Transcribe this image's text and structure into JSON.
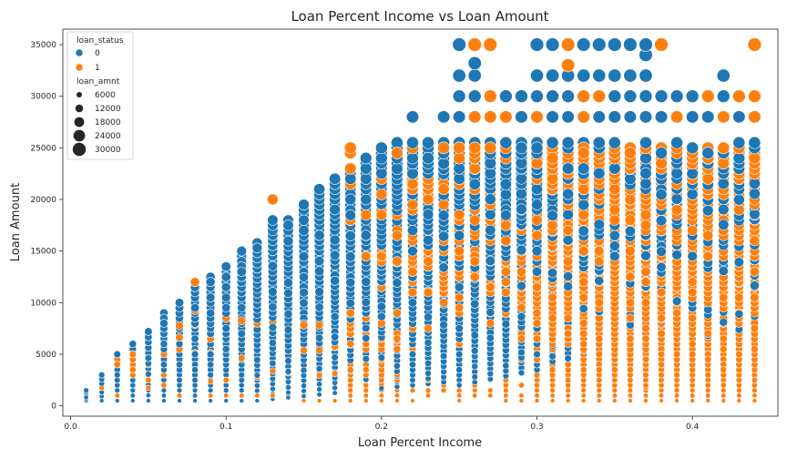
{
  "chart_data": {
    "type": "scatter",
    "title": "Loan Percent Income vs Loan Amount",
    "xlabel": "Loan Percent Income",
    "ylabel": "Loan Amount",
    "xlim": [
      -0.005,
      0.455
    ],
    "ylim": [
      -1000,
      36500
    ],
    "x_ticks": [
      0.0,
      0.1,
      0.2,
      0.3,
      0.4
    ],
    "x_tick_labels": [
      "0.0",
      "0.1",
      "0.2",
      "0.3",
      "0.4"
    ],
    "y_ticks": [
      0,
      5000,
      10000,
      15000,
      20000,
      25000,
      30000,
      35000
    ],
    "y_tick_labels": [
      "0",
      "5000",
      "10000",
      "15000",
      "20000",
      "25000",
      "30000",
      "35000"
    ],
    "grid": false,
    "legend_placement": "top-left",
    "legend": {
      "hue_title": "loan_status",
      "hue_entries": [
        {
          "label": "0",
          "color": "#1f77b4"
        },
        {
          "label": "1",
          "color": "#ff7f0e"
        }
      ],
      "size_title": "loan_amnt",
      "size_entries": [
        "6000",
        "12000",
        "18000",
        "24000",
        "30000"
      ]
    },
    "series": [
      {
        "name": "0",
        "color": "#1f77b4",
        "x_values": [
          0.01,
          0.02,
          0.03,
          0.04,
          0.05,
          0.06,
          0.07,
          0.08,
          0.09,
          0.1,
          0.11,
          0.12,
          0.13,
          0.14,
          0.15,
          0.16,
          0.17,
          0.18,
          0.19,
          0.2,
          0.21,
          0.22,
          0.23,
          0.24,
          0.25,
          0.26,
          0.27,
          0.28,
          0.29,
          0.3,
          0.31,
          0.32,
          0.33,
          0.34,
          0.35,
          0.36,
          0.37,
          0.38,
          0.39,
          0.4,
          0.41,
          0.42,
          0.43,
          0.44
        ],
        "y_max": [
          1500,
          3000,
          5000,
          6000,
          7200,
          9000,
          10000,
          11500,
          12500,
          13500,
          15000,
          15800,
          18000,
          18000,
          19500,
          21000,
          22000,
          22500,
          24000,
          25000,
          26000,
          28000,
          28000,
          28000,
          35000,
          33000,
          32000,
          30000,
          31000,
          35000,
          35000,
          35000,
          35000,
          35000,
          35000,
          35000,
          35000,
          30000,
          30000,
          30000,
          30000,
          32000,
          30000,
          30000
        ]
      },
      {
        "name": "1",
        "color": "#ff7f0e",
        "x_min": 0.02,
        "x_values": [
          0.02,
          0.03,
          0.04,
          0.05,
          0.06,
          0.07,
          0.08,
          0.09,
          0.1,
          0.11,
          0.12,
          0.13,
          0.14,
          0.15,
          0.16,
          0.17,
          0.18,
          0.19,
          0.2,
          0.21,
          0.22,
          0.23,
          0.24,
          0.25,
          0.26,
          0.27,
          0.28,
          0.29,
          0.3,
          0.31,
          0.32,
          0.33,
          0.34,
          0.35,
          0.36,
          0.37,
          0.38,
          0.39,
          0.4,
          0.41,
          0.42,
          0.43,
          0.44
        ],
        "y_max": [
          3000,
          5000,
          5000,
          7000,
          9000,
          10000,
          12000,
          12000,
          13000,
          15500,
          15000,
          20000,
          18500,
          20000,
          20000,
          21500,
          25000,
          25000,
          24000,
          25000,
          25000,
          25000,
          25000,
          25000,
          35000,
          35000,
          30000,
          30000,
          30000,
          35000,
          35000,
          30000,
          30000,
          30000,
          30000,
          35000,
          35000,
          35000,
          35000,
          35000,
          35000,
          35000,
          35000
        ]
      }
    ],
    "reference_points": [
      {
        "series": "1",
        "x": 0.26,
        "y": 35000
      },
      {
        "series": "0",
        "x": 0.25,
        "y": 35000
      },
      {
        "series": "0",
        "x": 0.37,
        "y": 34000
      },
      {
        "series": "1",
        "x": 0.32,
        "y": 33000
      },
      {
        "series": "0",
        "x": 0.26,
        "y": 33200
      },
      {
        "series": "1",
        "x": 0.13,
        "y": 20000
      },
      {
        "series": "1",
        "x": 0.37,
        "y": 1800
      },
      {
        "series": "0",
        "x": 0.01,
        "y": 1000
      }
    ]
  }
}
